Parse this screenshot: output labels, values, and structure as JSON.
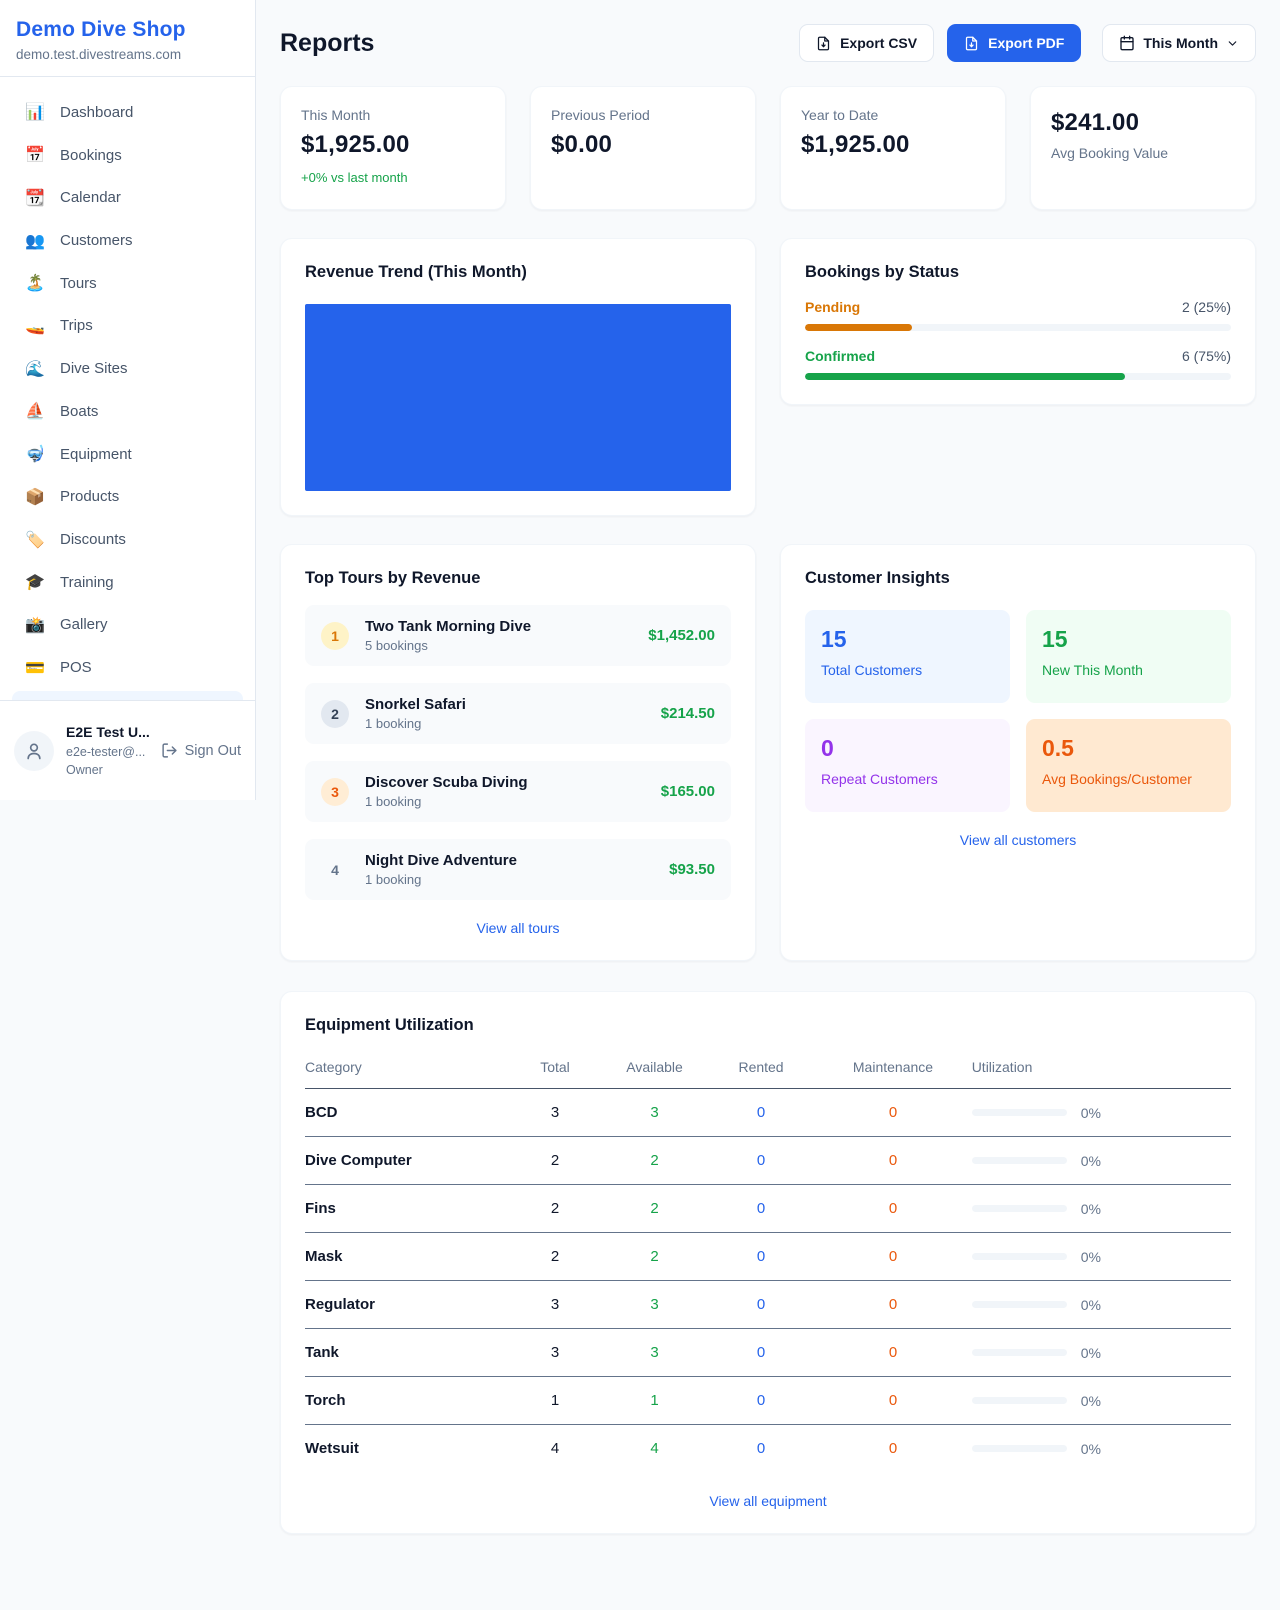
{
  "colors": {
    "accent_blue": "#2563eb",
    "green": "#16a34a",
    "orange_pending": "#d97706",
    "orange_maintenance": "#ea580c",
    "purple": "#9333ea"
  },
  "sidebar": {
    "brand": "Demo Dive Shop",
    "domain": "demo.test.divestreams.com",
    "items": [
      {
        "icon": "📊",
        "label": "Dashboard"
      },
      {
        "icon": "📅",
        "label": "Bookings"
      },
      {
        "icon": "📆",
        "label": "Calendar"
      },
      {
        "icon": "👥",
        "label": "Customers"
      },
      {
        "icon": "🏝️",
        "label": "Tours"
      },
      {
        "icon": "🚤",
        "label": "Trips"
      },
      {
        "icon": "🌊",
        "label": "Dive Sites"
      },
      {
        "icon": "⛵",
        "label": "Boats"
      },
      {
        "icon": "🤿",
        "label": "Equipment"
      },
      {
        "icon": "📦",
        "label": "Products"
      },
      {
        "icon": "🏷️",
        "label": "Discounts"
      },
      {
        "icon": "🎓",
        "label": "Training"
      },
      {
        "icon": "📸",
        "label": "Gallery"
      },
      {
        "icon": "💳",
        "label": "POS"
      }
    ],
    "user": {
      "name": "E2E Test U...",
      "email": "e2e-tester@...",
      "role": "Owner",
      "signout": "Sign Out"
    }
  },
  "header": {
    "title": "Reports",
    "export_csv": "Export CSV",
    "export_pdf": "Export PDF",
    "period": "This Month"
  },
  "stats": [
    {
      "label": "This Month",
      "value": "$1,925.00",
      "delta": "+0% vs last month"
    },
    {
      "label": "Previous Period",
      "value": "$0.00"
    },
    {
      "label": "Year to Date",
      "value": "$1,925.00"
    },
    {
      "label": "Avg Booking Value",
      "value": "$241.00"
    }
  ],
  "revenue": {
    "title": "Revenue Trend (This Month)"
  },
  "status": {
    "title": "Bookings by Status",
    "rows": [
      {
        "label": "Pending",
        "value": "2 (25%)",
        "percent": 25
      },
      {
        "label": "Confirmed",
        "value": "6 (75%)",
        "percent": 75
      }
    ]
  },
  "tours": {
    "title": "Top Tours by Revenue",
    "items": [
      {
        "rank": "1",
        "name": "Two Tank Morning Dive",
        "sub": "5 bookings",
        "amount": "$1,452.00"
      },
      {
        "rank": "2",
        "name": "Snorkel Safari",
        "sub": "1 booking",
        "amount": "$214.50"
      },
      {
        "rank": "3",
        "name": "Discover Scuba Diving",
        "sub": "1 booking",
        "amount": "$165.00"
      },
      {
        "rank": "4",
        "name": "Night Dive Adventure",
        "sub": "1 booking",
        "amount": "$93.50"
      }
    ],
    "view_all": "View all tours"
  },
  "insights": {
    "title": "Customer Insights",
    "tiles": [
      {
        "value": "15",
        "label": "Total Customers"
      },
      {
        "value": "15",
        "label": "New This Month"
      },
      {
        "value": "0",
        "label": "Repeat Customers"
      },
      {
        "value": "0.5",
        "label": "Avg Bookings/Customer"
      }
    ],
    "view_all": "View all customers"
  },
  "equipment": {
    "title": "Equipment Utilization",
    "columns": [
      "Category",
      "Total",
      "Available",
      "Rented",
      "Maintenance",
      "Utilization"
    ],
    "rows": [
      {
        "category": "BCD",
        "total": "3",
        "available": "3",
        "rented": "0",
        "maintenance": "0",
        "utilization": "0%",
        "percent": 0
      },
      {
        "category": "Dive Computer",
        "total": "2",
        "available": "2",
        "rented": "0",
        "maintenance": "0",
        "utilization": "0%",
        "percent": 0
      },
      {
        "category": "Fins",
        "total": "2",
        "available": "2",
        "rented": "0",
        "maintenance": "0",
        "utilization": "0%",
        "percent": 0
      },
      {
        "category": "Mask",
        "total": "2",
        "available": "2",
        "rented": "0",
        "maintenance": "0",
        "utilization": "0%",
        "percent": 0
      },
      {
        "category": "Regulator",
        "total": "3",
        "available": "3",
        "rented": "0",
        "maintenance": "0",
        "utilization": "0%",
        "percent": 0
      },
      {
        "category": "Tank",
        "total": "3",
        "available": "3",
        "rented": "0",
        "maintenance": "0",
        "utilization": "0%",
        "percent": 0
      },
      {
        "category": "Torch",
        "total": "1",
        "available": "1",
        "rented": "0",
        "maintenance": "0",
        "utilization": "0%",
        "percent": 0
      },
      {
        "category": "Wetsuit",
        "total": "4",
        "available": "4",
        "rented": "0",
        "maintenance": "0",
        "utilization": "0%",
        "percent": 0
      }
    ],
    "view_all": "View all equipment"
  }
}
